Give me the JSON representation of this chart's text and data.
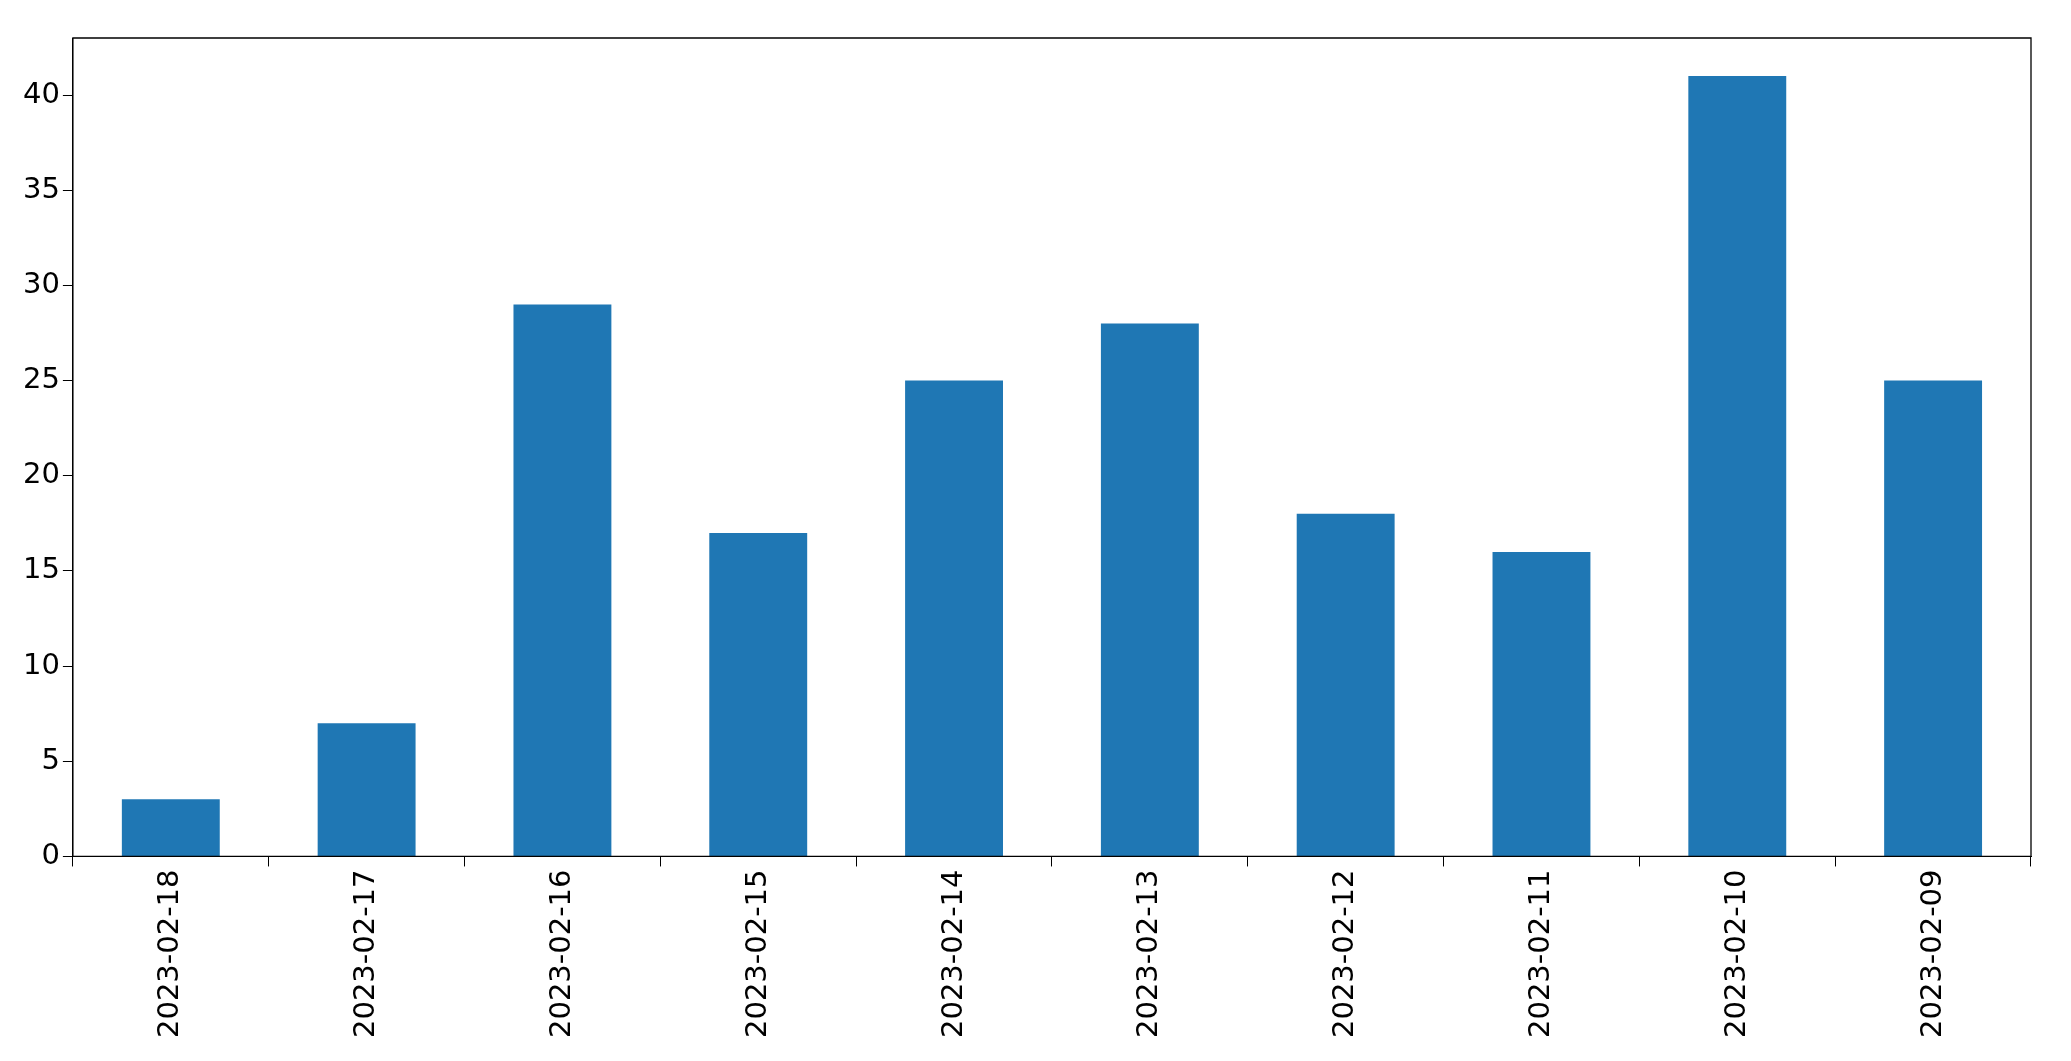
{
  "chart_data": {
    "type": "bar",
    "categories": [
      "2023-02-18",
      "2023-02-17",
      "2023-02-16",
      "2023-02-15",
      "2023-02-14",
      "2023-02-13",
      "2023-02-12",
      "2023-02-11",
      "2023-02-10",
      "2023-02-09"
    ],
    "values": [
      3,
      7,
      29,
      17,
      25,
      28,
      18,
      16,
      41,
      25
    ],
    "color": "#1f77b4",
    "ylim": [
      0,
      43
    ],
    "yticks": [
      0,
      5,
      10,
      15,
      20,
      25,
      30,
      35,
      40
    ],
    "grid": false,
    "legend": false
  }
}
